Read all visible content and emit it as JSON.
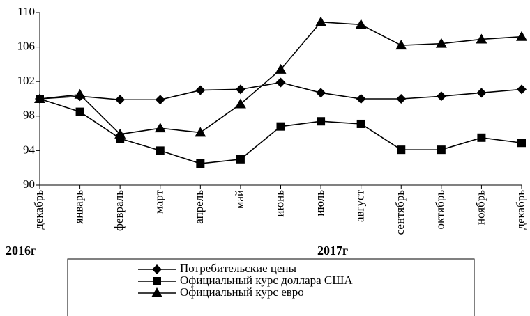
{
  "chart_data": {
    "type": "line",
    "categories": [
      "декабрь",
      "январь",
      "февраль",
      "март",
      "апрель",
      "май",
      "июнь",
      "июль",
      "август",
      "сентябрь",
      "октябрь",
      "ноябрь",
      "декабрь"
    ],
    "series": [
      {
        "name": "Потребительские цены",
        "color": "#000000",
        "marker": "diamond",
        "values": [
          100,
          100.3,
          99.9,
          99.9,
          101.0,
          101.1,
          101.9,
          100.7,
          100.0,
          100.0,
          100.3,
          100.7,
          101.1
        ]
      },
      {
        "name": "Официальный курс доллара США",
        "color": "#000000",
        "marker": "square",
        "values": [
          100,
          98.5,
          95.4,
          94.0,
          92.5,
          93.0,
          96.8,
          97.4,
          97.1,
          94.1,
          94.1,
          95.5,
          94.9
        ]
      },
      {
        "name": "Официальный курс евро",
        "color": "#000000",
        "marker": "triangle",
        "values": [
          100,
          100.5,
          95.9,
          96.6,
          96.1,
          99.4,
          103.4,
          108.9,
          108.6,
          106.2,
          106.4,
          106.9,
          107.2
        ]
      }
    ],
    "annotations": [
      "2016г",
      "2017г"
    ],
    "ylim": [
      90,
      110
    ],
    "yticks": [
      90,
      94,
      98,
      102,
      106,
      110
    ],
    "grid": false
  }
}
